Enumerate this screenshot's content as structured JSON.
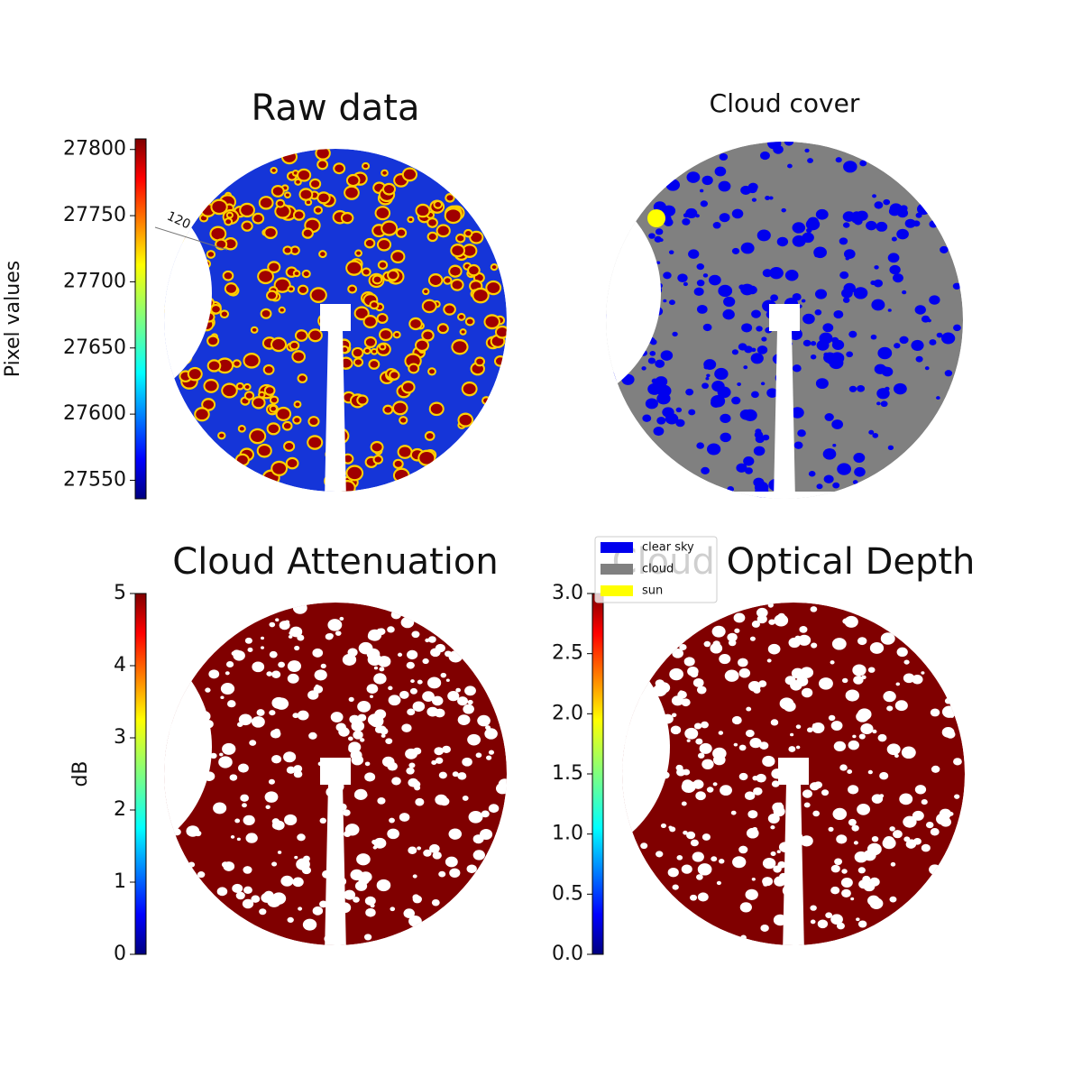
{
  "chart_data": [
    {
      "type": "image",
      "title": "Raw data",
      "colormap": "jet",
      "ylabel": "Pixel values",
      "ylim": [
        27536,
        27808
      ],
      "yticks": [
        27550,
        27600,
        27650,
        27700,
        27750,
        27800
      ],
      "annotation": "120"
    },
    {
      "type": "image",
      "title": "Cloud cover",
      "series": [
        {
          "name": "clear sky",
          "color": "#0000ee"
        },
        {
          "name": "cloud",
          "color": "#808080"
        },
        {
          "name": "sun",
          "color": "#ffff00"
        }
      ]
    },
    {
      "type": "image",
      "title": "Cloud Attenuation",
      "colormap": "jet",
      "ylabel": "dB",
      "ylim": [
        0,
        5
      ],
      "yticks": [
        0,
        1,
        2,
        3,
        4,
        5
      ]
    },
    {
      "type": "image",
      "title": "Cloud Optical Depth",
      "colormap": "jet",
      "ylim": [
        0,
        3
      ],
      "yticks": [
        {
          "value": 0,
          "label": "0.0"
        },
        0.5,
        {
          "value": 1,
          "label": "1.0"
        },
        1.5,
        {
          "value": 2,
          "label": "2.0"
        },
        2.5,
        {
          "value": 3,
          "label": "3.0"
        }
      ]
    }
  ]
}
